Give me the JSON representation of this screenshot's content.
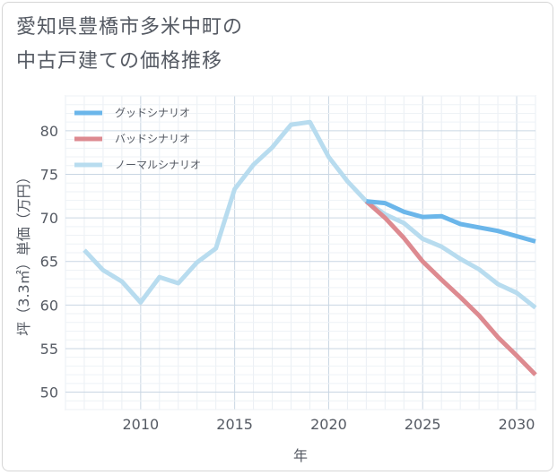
{
  "title_lines": [
    "愛知県豊橋市多米中町の",
    "中古戸建ての価格推移"
  ],
  "chart_data": {
    "type": "line",
    "xlabel": "年",
    "ylabel": "坪（3.3㎡）単価（万円）",
    "xlim": [
      2006,
      2031
    ],
    "ylim": [
      48,
      84
    ],
    "xticks": [
      2010,
      2015,
      2020,
      2025,
      2030
    ],
    "yticks": [
      50,
      55,
      60,
      65,
      70,
      75,
      80
    ],
    "grid": true,
    "legend_position": "top-left",
    "series": [
      {
        "name": "グッドシナリオ",
        "color": "#6bb6ea",
        "x": [
          2022,
          2023,
          2024,
          2025,
          2026,
          2027,
          2028,
          2029,
          2030,
          2031
        ],
        "y": [
          71.9,
          71.7,
          70.7,
          70.1,
          70.2,
          69.3,
          68.9,
          68.5,
          67.9,
          67.3
        ]
      },
      {
        "name": "バッドシナリオ",
        "color": "#dd8a90",
        "x": [
          2022,
          2023,
          2024,
          2025,
          2026,
          2027,
          2028,
          2029,
          2030,
          2031
        ],
        "y": [
          71.9,
          70.0,
          67.7,
          65.0,
          62.9,
          60.9,
          58.8,
          56.3,
          54.2,
          52.0
        ]
      },
      {
        "name": "ノーマルシナリオ",
        "color": "#b8dcef",
        "x": [
          2007,
          2008,
          2009,
          2010,
          2011,
          2012,
          2013,
          2014,
          2015,
          2016,
          2017,
          2018,
          2019,
          2020,
          2021,
          2022,
          2023,
          2024,
          2025,
          2026,
          2027,
          2028,
          2029,
          2030,
          2031
        ],
        "y": [
          66.3,
          64.0,
          62.7,
          60.3,
          63.2,
          62.5,
          64.9,
          66.5,
          73.3,
          76.1,
          78.1,
          80.7,
          81.0,
          77.0,
          74.2,
          71.9,
          70.4,
          69.4,
          67.6,
          66.7,
          65.3,
          64.1,
          62.4,
          61.4,
          59.7
        ]
      }
    ]
  }
}
